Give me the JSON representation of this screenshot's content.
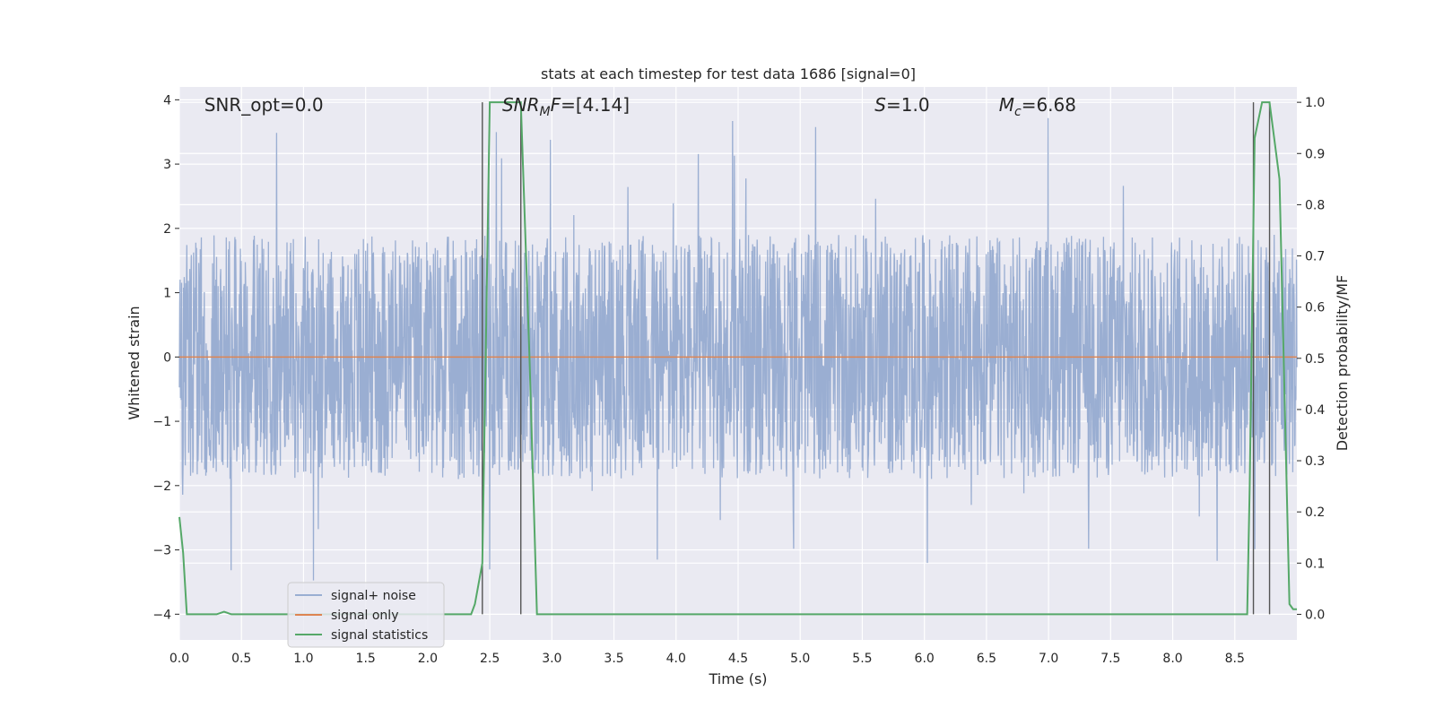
{
  "chart_data": {
    "type": "line",
    "title": "stats at each timestep for test data 1686 [signal=0]",
    "xlabel": "Time (s)",
    "ylabel": "Whitened strain",
    "y2label": "Detection probability/MF",
    "xlim": [
      0.0,
      9.0
    ],
    "ylim": [
      -4.4,
      4.2
    ],
    "y2lim": [
      -0.05,
      1.03
    ],
    "xticks": [
      "0.0",
      "0.5",
      "1.0",
      "1.5",
      "2.0",
      "2.5",
      "3.0",
      "3.5",
      "4.0",
      "4.5",
      "5.0",
      "5.5",
      "6.0",
      "6.5",
      "7.0",
      "7.5",
      "8.0",
      "8.5"
    ],
    "xtick_values": [
      0.0,
      0.5,
      1.0,
      1.5,
      2.0,
      2.5,
      3.0,
      3.5,
      4.0,
      4.5,
      5.0,
      5.5,
      6.0,
      6.5,
      7.0,
      7.5,
      8.0,
      8.5
    ],
    "yticks": [
      "−4",
      "−3",
      "−2",
      "−1",
      "0",
      "1",
      "2",
      "3",
      "4"
    ],
    "ytick_values": [
      -4,
      -3,
      -2,
      -1,
      0,
      1,
      2,
      3,
      4
    ],
    "y2ticks": [
      "0.0",
      "0.1",
      "0.2",
      "0.3",
      "0.4",
      "0.5",
      "0.6",
      "0.7",
      "0.8",
      "0.9",
      "1.0"
    ],
    "y2tick_values": [
      0.0,
      0.1,
      0.2,
      0.3,
      0.4,
      0.5,
      0.6,
      0.7,
      0.8,
      0.9,
      1.0
    ],
    "grid": true,
    "legend_position": "lower-left",
    "noise_envelope": {
      "typical_abs_max": 2.0,
      "peak_max": 3.8,
      "peak_min": -3.5
    },
    "annotations": [
      {
        "text": "SNR_opt=0.0",
        "x": 0.2
      },
      {
        "parts": [
          {
            "t": "SNR",
            "style": "italic"
          },
          {
            "t": "M",
            "style": "italic-sub"
          },
          {
            "t": "F",
            "style": "italic"
          },
          {
            "t": "=[4.14]",
            "style": "normal"
          }
        ],
        "x": 2.6
      },
      {
        "parts": [
          {
            "t": "S",
            "style": "italic"
          },
          {
            "t": "=1.0",
            "style": "normal"
          }
        ],
        "x": 5.6
      },
      {
        "parts": [
          {
            "t": "M",
            "style": "italic"
          },
          {
            "t": "c",
            "style": "italic-sub"
          },
          {
            "t": "=6.68",
            "style": "normal"
          }
        ],
        "x": 6.6
      }
    ],
    "vlines": [
      2.44,
      2.75,
      8.65,
      8.78
    ],
    "series": [
      {
        "name": "signal+ noise",
        "color": "#9aaed2",
        "axis": "left"
      },
      {
        "name": "signal only",
        "color": "#dd8452",
        "axis": "left",
        "x": [
          0.0,
          9.0
        ],
        "y": [
          0.0,
          0.0
        ]
      },
      {
        "name": "signal statistics",
        "color": "#55a868",
        "axis": "right",
        "x": [
          0.0,
          0.03,
          0.06,
          0.1,
          0.3,
          0.36,
          0.42,
          0.5,
          2.35,
          2.38,
          2.44,
          2.5,
          2.62,
          2.75,
          2.82,
          2.88,
          3.0,
          3.2,
          3.4,
          8.6,
          8.62,
          8.66,
          8.72,
          8.78,
          8.86,
          8.94,
          8.97,
          9.0
        ],
        "y": [
          0.19,
          0.12,
          0.0,
          0.0,
          0.0,
          0.005,
          0.0,
          0.0,
          0.0,
          0.02,
          0.1,
          1.0,
          1.0,
          1.0,
          0.5,
          0.0,
          0.0,
          0.0,
          0.0,
          0.0,
          0.25,
          0.93,
          1.0,
          1.0,
          0.85,
          0.02,
          0.01,
          0.01
        ]
      }
    ]
  }
}
